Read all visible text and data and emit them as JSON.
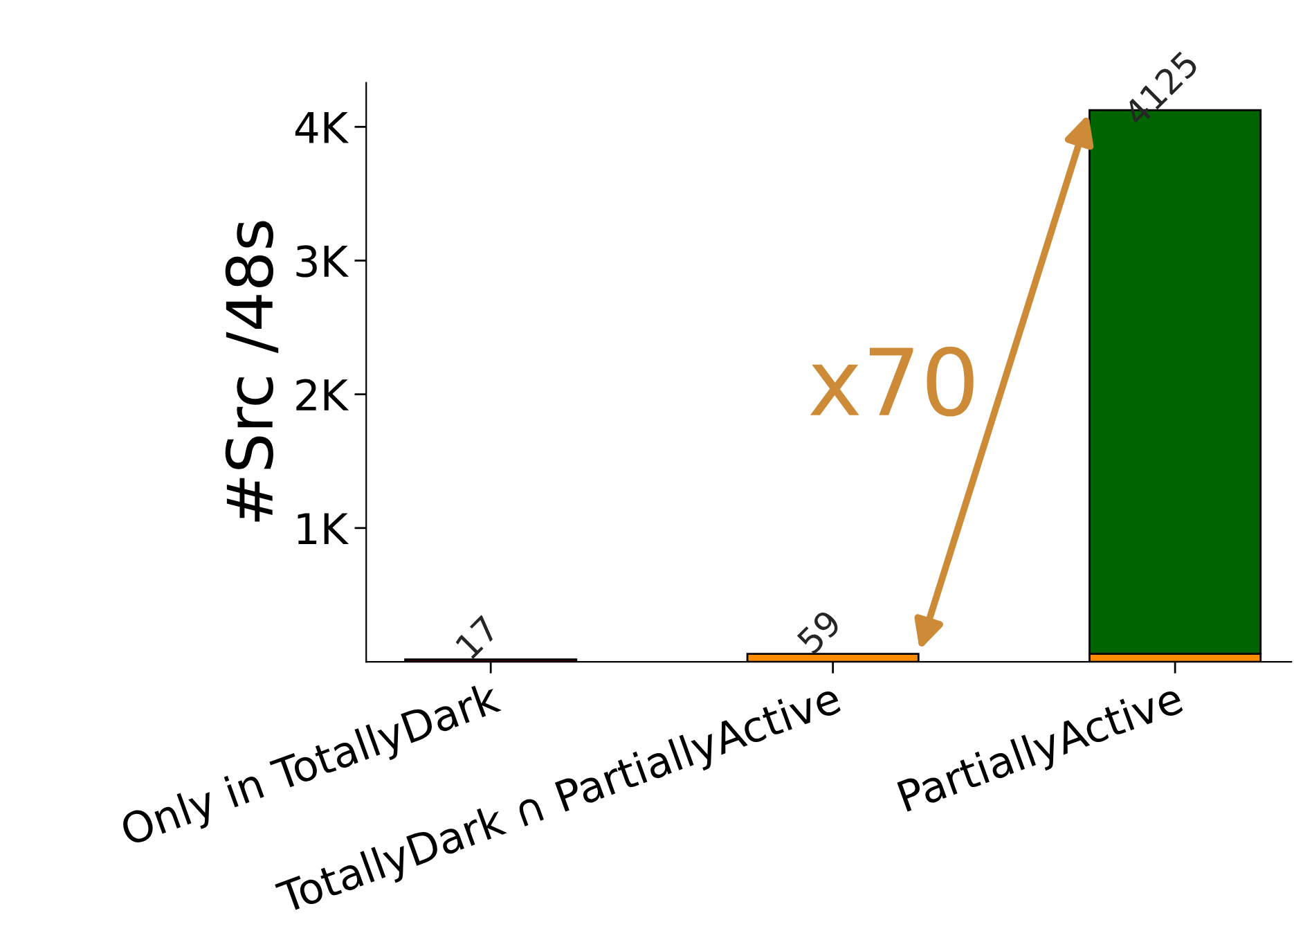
{
  "chart_data": {
    "type": "bar",
    "stacked": true,
    "categories": [
      "Only in TotallyDark",
      "TotallyDark ∩ PartiallyActive",
      "PartiallyActive"
    ],
    "series": [
      {
        "color": "#8b0000",
        "values": [
          17,
          null,
          null
        ]
      },
      {
        "color": "#ff8c00",
        "values": [
          null,
          59,
          59
        ]
      },
      {
        "color": "#006400",
        "values": [
          null,
          null,
          4066
        ]
      }
    ],
    "totals": [
      "17",
      "59",
      "4125"
    ],
    "ylabel": "#Src /48s",
    "ylim": [
      0,
      4330
    ],
    "yticks": [
      {
        "value": 1000,
        "label": "1K"
      },
      {
        "value": 2000,
        "label": "2K"
      },
      {
        "value": 3000,
        "label": "3K"
      },
      {
        "value": 4000,
        "label": "4K"
      }
    ],
    "annotations": [
      "x70"
    ],
    "grid": false
  }
}
